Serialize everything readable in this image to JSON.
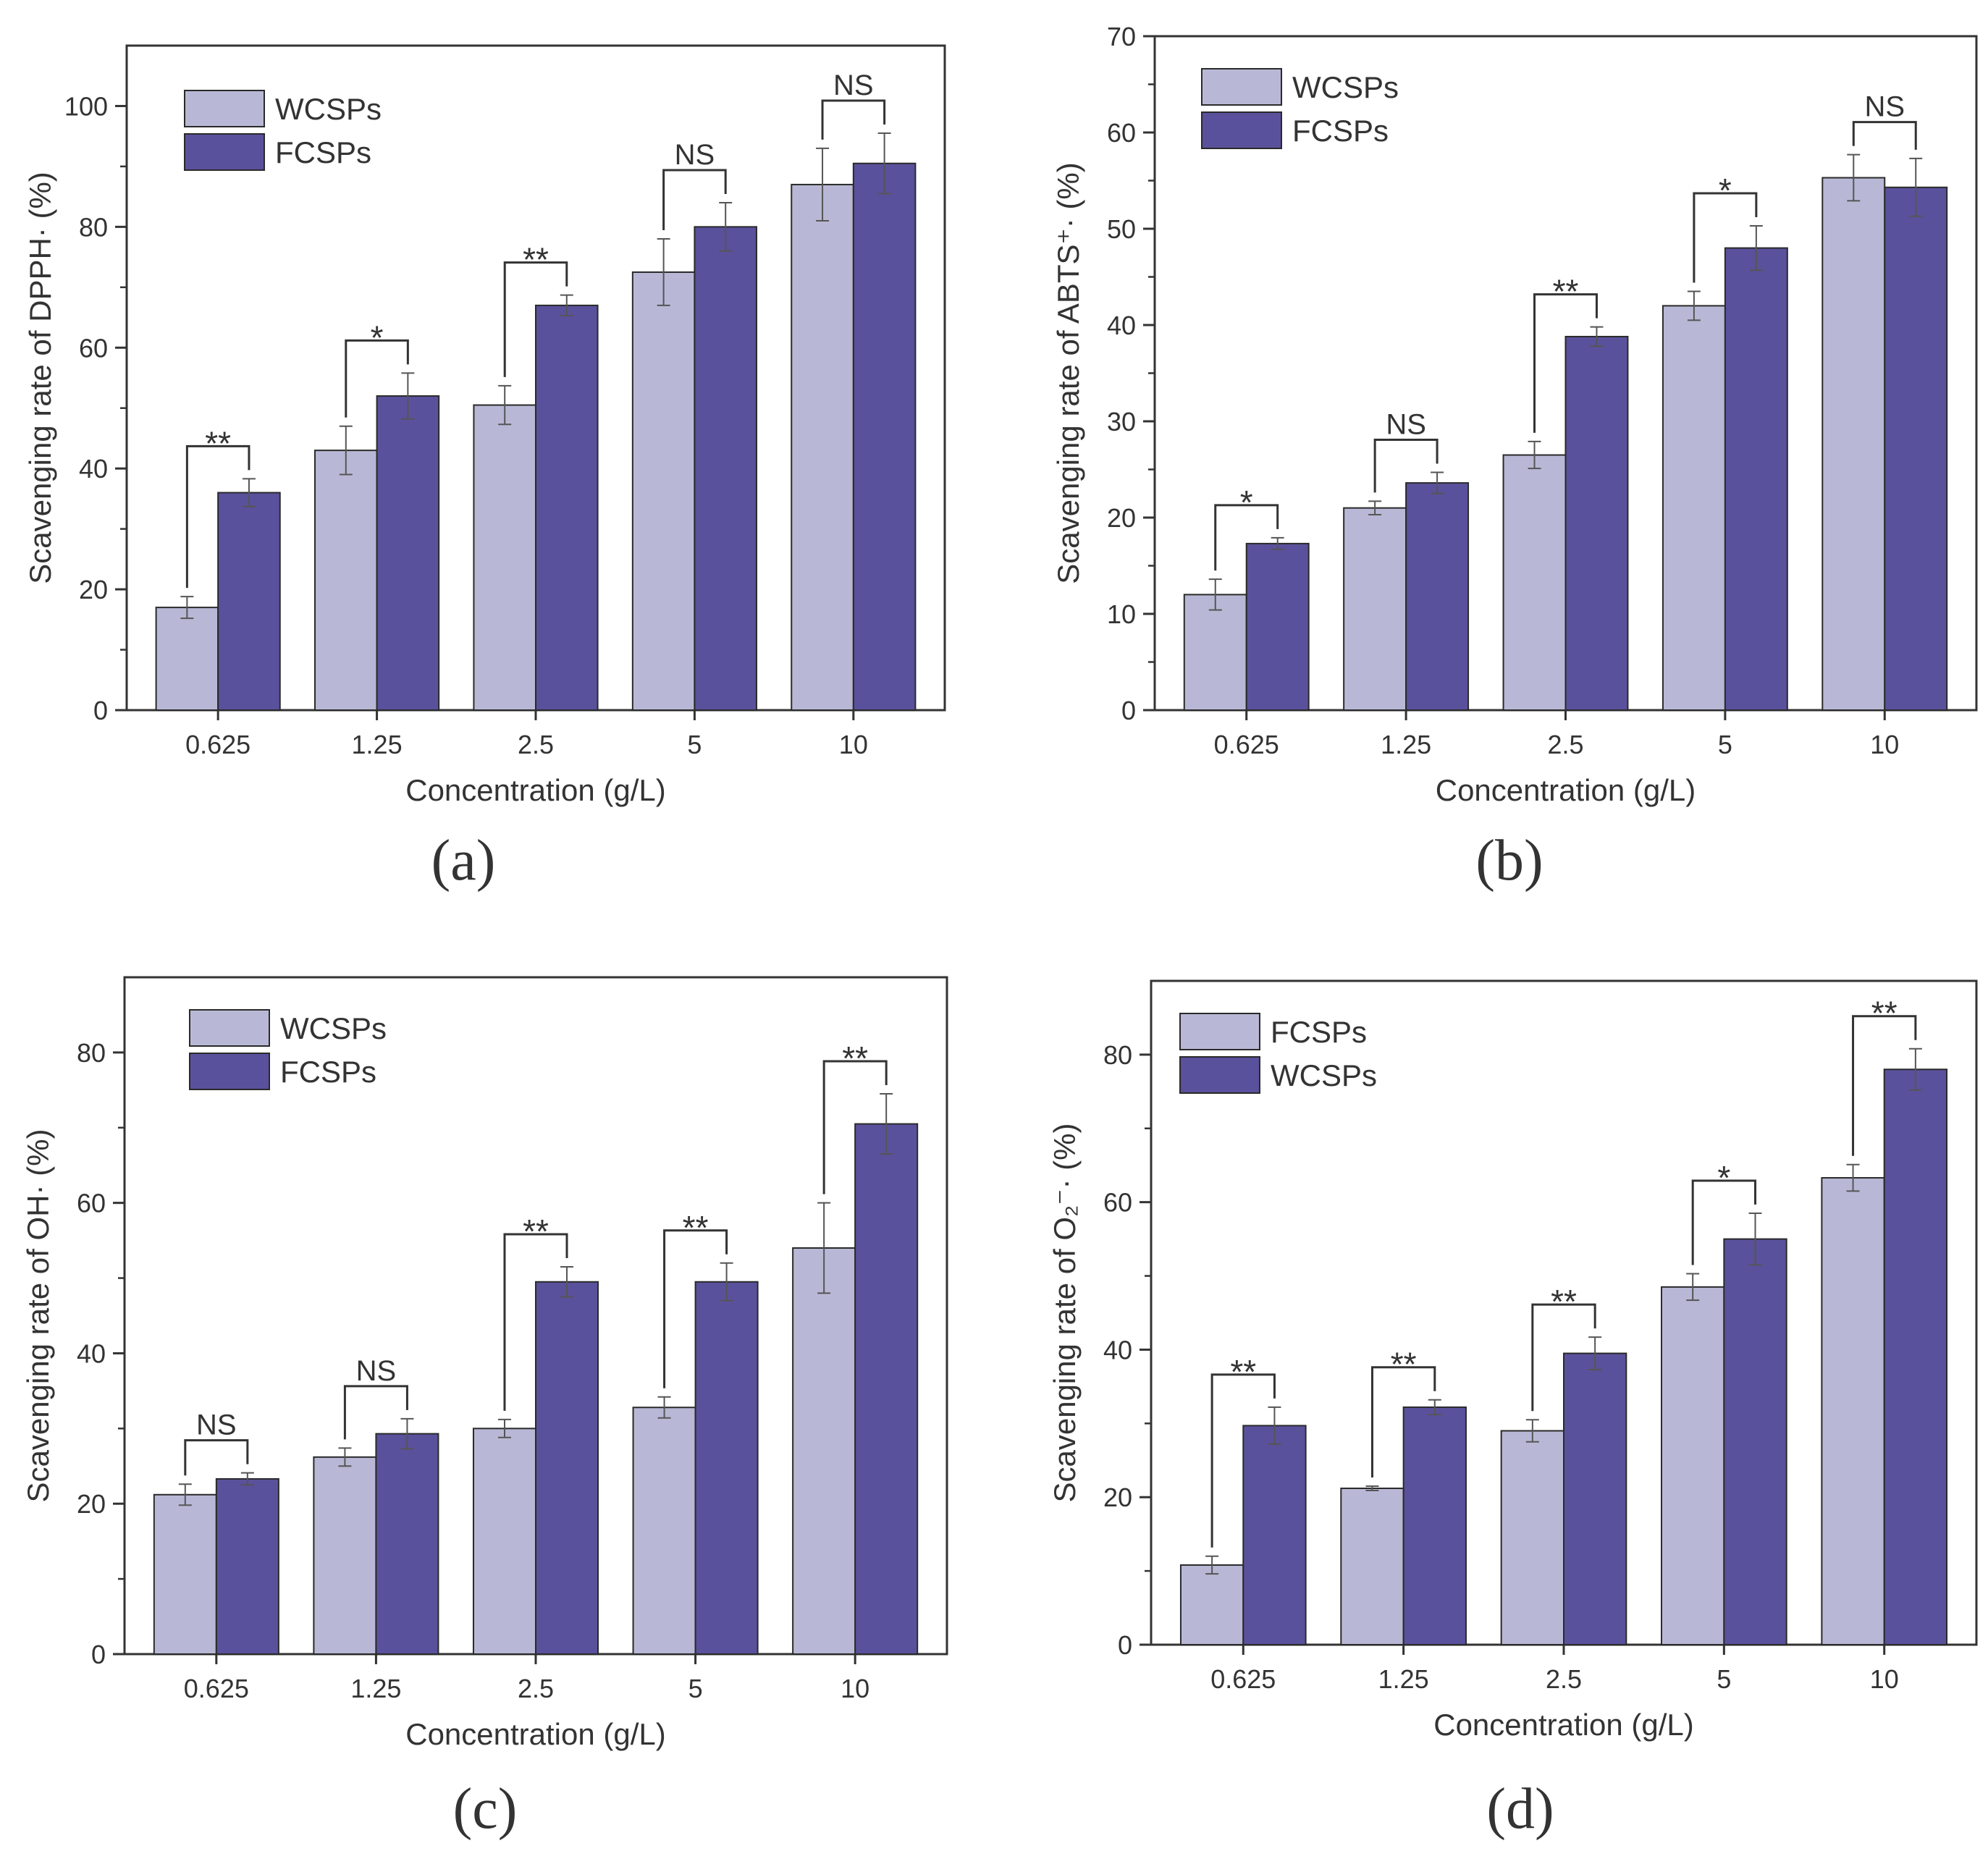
{
  "colors": {
    "light_bar": "#b8b8d6",
    "dark_bar": "#5a519c",
    "bar_outline": "#2a2a2a",
    "axis": "#333333",
    "text": "#333333"
  },
  "chart_data": [
    {
      "panel": "(a)",
      "type": "bar",
      "xlabel": "Concentration (g/L)",
      "ylabel": "Scavenging rate of DPPH· (%)",
      "ylim": [
        0,
        110
      ],
      "yticks": [
        0,
        20,
        40,
        60,
        80,
        100
      ],
      "categories": [
        "0.625",
        "1.25",
        "2.5",
        "5",
        "10"
      ],
      "legend_position": "top-left",
      "series": [
        {
          "name": "WCSPs",
          "style": "light",
          "values": [
            17.0,
            43.0,
            50.5,
            72.5,
            87.0
          ],
          "errors": [
            1.8,
            4.0,
            3.2,
            5.5,
            6.0
          ]
        },
        {
          "name": "FCSPs",
          "style": "dark",
          "values": [
            36.0,
            52.0,
            67.0,
            80.0,
            90.5
          ],
          "errors": [
            2.3,
            3.8,
            1.7,
            4.0,
            5.0
          ]
        }
      ],
      "significance": [
        "**",
        "*",
        "**",
        "NS",
        "NS"
      ]
    },
    {
      "panel": "(b)",
      "type": "bar",
      "xlabel": "Concentration  (g/L)",
      "ylabel": "Scavenging rate of ABTS⁺· (%)",
      "ylim": [
        0,
        70
      ],
      "yticks": [
        0,
        10,
        20,
        30,
        40,
        50,
        60,
        70
      ],
      "categories": [
        "0.625",
        "1.25",
        "2.5",
        "5",
        "10"
      ],
      "legend_position": "top-left",
      "series": [
        {
          "name": "WCSPs",
          "style": "light",
          "values": [
            12.0,
            21.0,
            26.5,
            42.0,
            55.3
          ],
          "errors": [
            1.6,
            0.7,
            1.4,
            1.5,
            2.4
          ]
        },
        {
          "name": "FCSPs",
          "style": "dark",
          "values": [
            17.3,
            23.6,
            38.8,
            48.0,
            54.3
          ],
          "errors": [
            0.6,
            1.1,
            1.0,
            2.3,
            3.0
          ]
        }
      ],
      "significance": [
        "*",
        "NS",
        "**",
        "*",
        "NS"
      ]
    },
    {
      "panel": "(c)",
      "type": "bar",
      "xlabel": "Concentration (g/L)",
      "ylabel": "Scavenging rate of OH· (%)",
      "ylim": [
        0,
        90
      ],
      "yticks": [
        0,
        20,
        40,
        60,
        80
      ],
      "categories": [
        "0.625",
        "1.25",
        "2.5",
        "5",
        "10"
      ],
      "legend_position": "top-left",
      "series": [
        {
          "name": "WCSPs",
          "style": "light",
          "values": [
            21.2,
            26.2,
            30.0,
            32.8,
            54.0
          ],
          "errors": [
            1.4,
            1.2,
            1.2,
            1.4,
            6.0
          ]
        },
        {
          "name": "FCSPs",
          "style": "dark",
          "values": [
            23.3,
            29.3,
            49.5,
            49.5,
            70.5
          ],
          "errors": [
            0.8,
            2.0,
            2.0,
            2.5,
            4.0
          ]
        }
      ],
      "significance": [
        "NS",
        "NS",
        "**",
        "**",
        "**"
      ]
    },
    {
      "panel": "(d)",
      "type": "bar",
      "xlabel": "Concentration (g/L)",
      "ylabel": "Scavenging rate of O₂⁻· (%)",
      "ylim": [
        0,
        90
      ],
      "yticks": [
        0,
        20,
        40,
        60,
        80
      ],
      "categories": [
        "0.625",
        "1.25",
        "2.5",
        "5",
        "10"
      ],
      "legend_position": "top-left",
      "series": [
        {
          "name": "FCSPs",
          "style": "light",
          "values": [
            10.8,
            21.2,
            29.0,
            48.5,
            63.3
          ],
          "errors": [
            1.2,
            0.3,
            1.5,
            1.8,
            1.8
          ]
        },
        {
          "name": "WCSPs",
          "style": "dark",
          "values": [
            29.7,
            32.2,
            39.5,
            55.0,
            78.0
          ],
          "errors": [
            2.5,
            1.0,
            2.2,
            3.5,
            2.8
          ]
        }
      ],
      "significance": [
        "**",
        "**",
        "**",
        "*",
        "**"
      ]
    }
  ]
}
